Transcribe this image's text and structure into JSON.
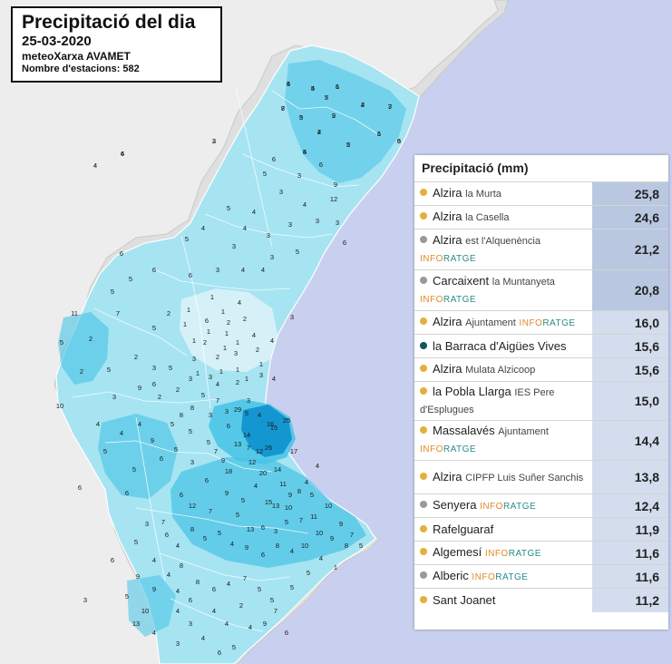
{
  "header": {
    "title": "Precipitació del dia",
    "date": "25-03-2020",
    "network": "meteoXarxa AVAMET",
    "stations": "Nombre d'estacions: 582"
  },
  "colors": {
    "sea": "#c9cfee",
    "land": "#ededed",
    "precip_low": "#d5f1f7",
    "precip_mid": "#a6e4f2",
    "precip_high": "#47c3e6",
    "precip_max": "#1497d1",
    "dot_gold": "#e2b13c",
    "dot_grey": "#9a9a9a",
    "dot_teal": "#14545e"
  },
  "panel": {
    "title": "Precipitació (mm)",
    "rows": [
      {
        "name": "Alzira",
        "location": "la Murta",
        "tag": "",
        "value": "25,8",
        "dot": "gold"
      },
      {
        "name": "Alzira",
        "location": "la Casella",
        "tag": "",
        "value": "24,6",
        "dot": "gold"
      },
      {
        "name": "Alzira",
        "location": "est l'Alquenència",
        "tag": "INFORATGE",
        "value": "21,2",
        "dot": "grey"
      },
      {
        "name": "Carcaixent",
        "location": "la Muntanyeta",
        "tag": "INFORATGE",
        "value": "20,8",
        "dot": "grey"
      },
      {
        "name": "Alzira",
        "location": "Ajuntament",
        "tag": "INFORATGE",
        "value": "16,0",
        "dot": "gold"
      },
      {
        "name": "la Barraca d'Aigües Vives",
        "location": "",
        "tag": "",
        "value": "15,6",
        "dot": "teal"
      },
      {
        "name": "Alzira",
        "location": "Mulata Alzicoop",
        "tag": "",
        "value": "15,6",
        "dot": "gold"
      },
      {
        "name": "la Pobla Llarga",
        "location": "IES Pere d'Esplugues",
        "tag": "",
        "value": "15,0",
        "dot": "gold"
      },
      {
        "name": "Massalavés",
        "location": "Ajuntament",
        "tag": "INFORATGE",
        "value": "14,4",
        "dot": "gold"
      },
      {
        "name": "Alzira",
        "location": "CIPFP Luis Suñer Sanchis",
        "tag": "",
        "value": "13,8",
        "dot": "gold"
      },
      {
        "name": "Senyera",
        "location": "",
        "tag": "INFORATGE",
        "value": "12,4",
        "dot": "grey"
      },
      {
        "name": "Rafelguaraf",
        "location": "",
        "tag": "",
        "value": "11,9",
        "dot": "gold"
      },
      {
        "name": "Algemesí",
        "location": "",
        "tag": "INFORATGE",
        "value": "11,6",
        "dot": "gold"
      },
      {
        "name": "Alberic",
        "location": "",
        "tag": "INFORATGE",
        "value": "11,6",
        "dot": "grey"
      },
      {
        "name": "Sant Joanet",
        "location": "",
        "tag": "",
        "value": "11,2",
        "dot": "gold"
      }
    ]
  },
  "stations": [
    "5",
    "4",
    "7",
    "5",
    "5",
    "6",
    "9",
    "2",
    "2",
    "4",
    "4",
    "7",
    "6",
    "6",
    "5",
    "4",
    "4",
    "6",
    "5",
    "3",
    "6",
    "9",
    "3",
    "5",
    "4",
    "12",
    "4",
    "3",
    "3",
    "3",
    "6",
    "3",
    "4",
    "3",
    "5",
    "5",
    "4",
    "3",
    "3",
    "4",
    "4",
    "6",
    "6",
    "6",
    "5",
    "1",
    "1",
    "4",
    "6",
    "2",
    "2",
    "4",
    "2",
    "3",
    "2",
    "3",
    "2",
    "4",
    "3",
    "1",
    "1",
    "1",
    "1",
    "1",
    "1",
    "1",
    "1",
    "1",
    "1",
    "2",
    "5",
    "1",
    "1",
    "2",
    "5",
    "2",
    "11",
    "5",
    "2",
    "7",
    "5",
    "10",
    "3",
    "2",
    "5",
    "4",
    "7",
    "3",
    "3",
    "4",
    "2",
    "2",
    "3",
    "3",
    "3",
    "5",
    "5",
    "5",
    "6",
    "4",
    "9",
    "13",
    "7",
    "12",
    "15",
    "14",
    "16",
    "26",
    "25",
    "29",
    "12",
    "18",
    "7",
    "6",
    "3",
    "5",
    "6",
    "6",
    "12",
    "20",
    "14",
    "11",
    "17",
    "9",
    "13",
    "15",
    "10",
    "8",
    "5",
    "4",
    "4",
    "4",
    "5",
    "9",
    "7",
    "5",
    "13",
    "6",
    "3",
    "5",
    "7",
    "11",
    "10",
    "9",
    "7",
    "5",
    "8",
    "9",
    "10",
    "10",
    "4",
    "8",
    "6",
    "9",
    "4",
    "5",
    "5",
    "8",
    "4",
    "6",
    "7",
    "3",
    "5",
    "4",
    "4",
    "8",
    "8",
    "6",
    "4",
    "7",
    "5",
    "5",
    "5",
    "5",
    "4",
    "1",
    "9",
    "9",
    "10",
    "13",
    "4",
    "4",
    "3",
    "4",
    "6",
    "5",
    "4",
    "9",
    "7",
    "6",
    "4",
    "6",
    "4",
    "4",
    "2",
    "3",
    "5",
    "6",
    "3",
    "6",
    "6",
    "5",
    "5",
    "3",
    "4",
    "4",
    "4",
    "9",
    "5",
    "8",
    "5",
    "8",
    "3",
    "9",
    "6",
    "4",
    "5",
    "8",
    "3",
    "7",
    "1",
    "2",
    "4",
    "3",
    "4",
    "6",
    "3",
    "1",
    "3",
    "2",
    "2",
    "5"
  ]
}
